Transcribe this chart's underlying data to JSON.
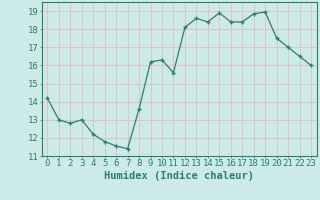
{
  "x": [
    0,
    1,
    2,
    3,
    4,
    5,
    6,
    7,
    8,
    9,
    10,
    11,
    12,
    13,
    14,
    15,
    16,
    17,
    18,
    19,
    20,
    21,
    22,
    23
  ],
  "y": [
    14.2,
    13.0,
    12.8,
    13.0,
    12.2,
    11.8,
    11.55,
    11.4,
    13.6,
    16.2,
    16.3,
    15.6,
    18.1,
    18.6,
    18.4,
    18.9,
    18.4,
    18.4,
    18.85,
    18.95,
    17.5,
    17.0,
    16.5,
    16.0
  ],
  "xlabel": "Humidex (Indice chaleur)",
  "ylim": [
    11,
    19.5
  ],
  "xlim": [
    -0.5,
    23.5
  ],
  "yticks": [
    11,
    12,
    13,
    14,
    15,
    16,
    17,
    18,
    19
  ],
  "xticks": [
    0,
    1,
    2,
    3,
    4,
    5,
    6,
    7,
    8,
    9,
    10,
    11,
    12,
    13,
    14,
    15,
    16,
    17,
    18,
    19,
    20,
    21,
    22,
    23
  ],
  "line_color": "#2e7d6e",
  "marker_color": "#2e7d6e",
  "bg_color": "#cceae7",
  "grid_color": "#e8b4b4",
  "axes_color": "#2e7d6e",
  "tick_label_fontsize": 6.5,
  "xlabel_fontsize": 7.5
}
